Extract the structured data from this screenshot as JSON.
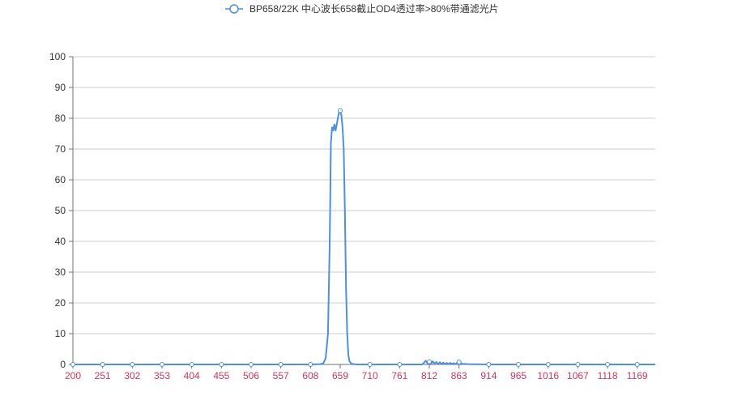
{
  "chart_data": {
    "type": "line",
    "legend": {
      "position": "top-center"
    },
    "x_tick_labels": [
      "200",
      "251",
      "302",
      "353",
      "404",
      "455",
      "506",
      "557",
      "608",
      "659",
      "710",
      "761",
      "812",
      "863",
      "914",
      "965",
      "1016",
      "1067",
      "1118",
      "1169"
    ],
    "y_tick_labels": [
      "0",
      "10",
      "20",
      "30",
      "40",
      "50",
      "60",
      "70",
      "80",
      "90",
      "100"
    ],
    "xlim": [
      200,
      1200
    ],
    "ylim": [
      0,
      100
    ],
    "grid": {
      "horizontal": true,
      "vertical": false
    },
    "series": [
      {
        "name": "BP658/22K 中心波长658截止OD4透过率>80%带通滤光片",
        "color": "#4f8fdc",
        "x": [
          200,
          251,
          302,
          353,
          404,
          455,
          506,
          557,
          608,
          625,
          630,
          634,
          638,
          641,
          643,
          645,
          647,
          649,
          651,
          653,
          655,
          657,
          659,
          661,
          663,
          665,
          667,
          669,
          671,
          673,
          675,
          678,
          682,
          688,
          710,
          761,
          800,
          806,
          809,
          812,
          815,
          818,
          821,
          824,
          827,
          830,
          833,
          836,
          839,
          842,
          845,
          848,
          851,
          854,
          857,
          860,
          863,
          868,
          880,
          914,
          965,
          1016,
          1067,
          1118,
          1169,
          1200
        ],
        "y": [
          0,
          0,
          0,
          0,
          0,
          0,
          0,
          0,
          0,
          0.1,
          0.4,
          2,
          10,
          40,
          72,
          77,
          76,
          78,
          76,
          78,
          80,
          82,
          82.5,
          81,
          77,
          70,
          50,
          25,
          10,
          3,
          1,
          0.3,
          0.1,
          0,
          0,
          0,
          0,
          1.2,
          0.3,
          0.9,
          0.2,
          1,
          0.3,
          0.8,
          0.1,
          0.7,
          0.2,
          0.6,
          0.1,
          0.5,
          0.1,
          0.5,
          0.2,
          0.4,
          0.1,
          0.6,
          0.8,
          0.2,
          0.1,
          0,
          0,
          0,
          0,
          0,
          0,
          0
        ],
        "marker_x": [
          200,
          251,
          302,
          353,
          404,
          455,
          506,
          557,
          608,
          659,
          710,
          761,
          812,
          863,
          914,
          965,
          1016,
          1067,
          1118,
          1169
        ],
        "marker_y": [
          0,
          0,
          0,
          0,
          0,
          0,
          0,
          0,
          0,
          82.5,
          0,
          0,
          0.9,
          0.8,
          0,
          0,
          0,
          0,
          0,
          0
        ]
      }
    ]
  },
  "style": {
    "axis_color": "#6e7079",
    "grid_color": "#cccccc",
    "y_label_color": "#333333",
    "x_label_color": "#c23a5b",
    "legend_text_color": "#333333"
  }
}
